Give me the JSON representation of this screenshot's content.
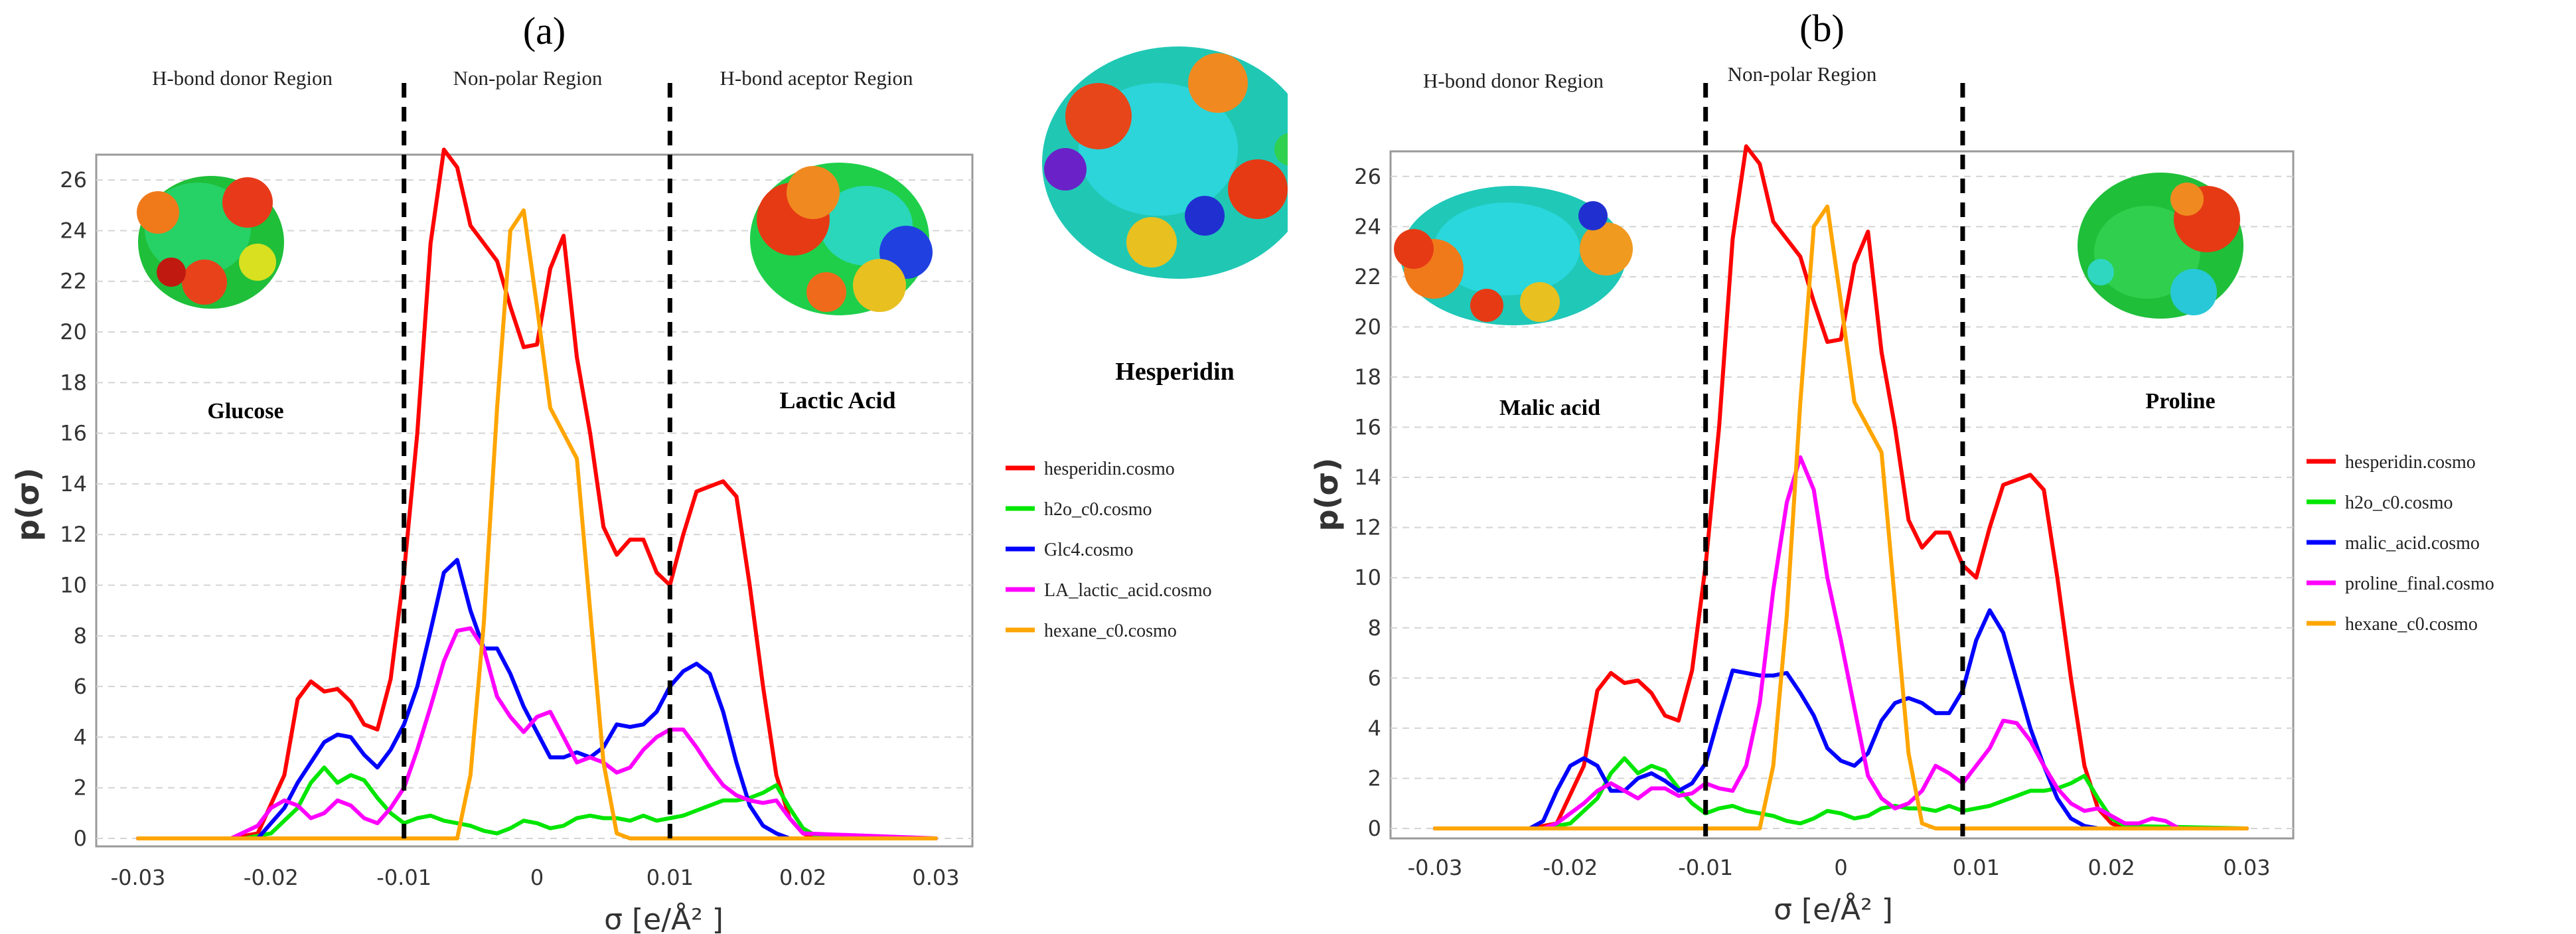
{
  "chart_data": [
    {
      "type": "line",
      "panel_label": "(a)",
      "xlabel": "σ [e/Å² ]",
      "ylabel": "p(σ)",
      "xlim": [
        -0.03,
        0.03
      ],
      "ylim": [
        0,
        27
      ],
      "x_ticks": [
        "-0.03",
        "-0.02",
        "-0.01",
        "0",
        "0.01",
        "0.02",
        "0.03"
      ],
      "y_ticks": [
        "0",
        "2",
        "4",
        "6",
        "8",
        "10",
        "12",
        "14",
        "16",
        "18",
        "20",
        "22",
        "24",
        "26"
      ],
      "grid": "horizontal dashed",
      "regions": [
        "H-bond donor Region",
        "Non-polar Region",
        "H-bond aceptor Region"
      ],
      "dividers": [
        -0.01,
        0.01
      ],
      "annotations": [
        "Glucose",
        "Lactic Acid",
        "Hesperidin"
      ],
      "legend_position": "right",
      "series": [
        {
          "name": "hesperidin.cosmo",
          "color": "#ff0000",
          "x": [
            -0.03,
            -0.023,
            -0.021,
            -0.019,
            -0.018,
            -0.017,
            -0.016,
            -0.015,
            -0.014,
            -0.013,
            -0.012,
            -0.011,
            -0.01,
            -0.009,
            -0.008,
            -0.007,
            -0.006,
            -0.005,
            -0.004,
            -0.003,
            -0.002,
            -0.001,
            0.0,
            0.001,
            0.002,
            0.003,
            0.004,
            0.005,
            0.006,
            0.007,
            0.008,
            0.009,
            0.01,
            0.011,
            0.012,
            0.013,
            0.014,
            0.015,
            0.016,
            0.017,
            0.018,
            0.019,
            0.02,
            0.021,
            0.03
          ],
          "y": [
            0,
            0,
            0.2,
            2.5,
            5.5,
            6.2,
            5.8,
            5.9,
            5.4,
            4.5,
            4.3,
            6.3,
            10.5,
            16,
            23.5,
            27.2,
            26.5,
            24.2,
            23.5,
            22.8,
            21,
            19.4,
            19.5,
            22.5,
            23.8,
            19,
            16,
            12.3,
            11.2,
            11.8,
            11.8,
            10.5,
            10,
            12,
            13.7,
            13.9,
            14.1,
            13.5,
            10,
            6,
            2.5,
            0.8,
            0.2,
            0,
            0
          ]
        },
        {
          "name": "h2o_c0.cosmo",
          "color": "#00e600",
          "x": [
            -0.03,
            -0.022,
            -0.02,
            -0.018,
            -0.017,
            -0.016,
            -0.015,
            -0.014,
            -0.013,
            -0.012,
            -0.011,
            -0.01,
            -0.009,
            -0.008,
            -0.007,
            -0.006,
            -0.005,
            -0.004,
            -0.003,
            -0.002,
            -0.001,
            0.0,
            0.001,
            0.002,
            0.003,
            0.004,
            0.005,
            0.006,
            0.007,
            0.008,
            0.009,
            0.01,
            0.011,
            0.012,
            0.013,
            0.014,
            0.015,
            0.016,
            0.017,
            0.018,
            0.019,
            0.02,
            0.021,
            0.03
          ],
          "y": [
            0,
            0,
            0.2,
            1.2,
            2.2,
            2.8,
            2.2,
            2.5,
            2.3,
            1.6,
            1,
            0.6,
            0.8,
            0.9,
            0.7,
            0.6,
            0.5,
            0.3,
            0.2,
            0.4,
            0.7,
            0.6,
            0.4,
            0.5,
            0.8,
            0.9,
            0.8,
            0.8,
            0.7,
            0.9,
            0.7,
            0.8,
            0.9,
            1.1,
            1.3,
            1.5,
            1.5,
            1.6,
            1.8,
            2.1,
            1.2,
            0.4,
            0.1,
            0
          ]
        },
        {
          "name": "Glc4.cosmo",
          "color": "#0000ff",
          "x": [
            -0.03,
            -0.021,
            -0.019,
            -0.018,
            -0.017,
            -0.016,
            -0.015,
            -0.014,
            -0.013,
            -0.012,
            -0.011,
            -0.01,
            -0.009,
            -0.008,
            -0.007,
            -0.006,
            -0.005,
            -0.004,
            -0.003,
            -0.002,
            -0.001,
            0.0,
            0.001,
            0.002,
            0.003,
            0.004,
            0.005,
            0.006,
            0.007,
            0.008,
            0.009,
            0.01,
            0.011,
            0.012,
            0.013,
            0.014,
            0.015,
            0.016,
            0.017,
            0.018,
            0.019,
            0.02,
            0.03
          ],
          "y": [
            0,
            0,
            1.2,
            2.2,
            3,
            3.8,
            4.1,
            4,
            3.3,
            2.8,
            3.5,
            4.5,
            6,
            8.2,
            10.5,
            11,
            9,
            7.5,
            7.5,
            6.5,
            5.2,
            4.2,
            3.2,
            3.2,
            3.4,
            3.2,
            3.6,
            4.5,
            4.4,
            4.5,
            5,
            6,
            6.6,
            6.9,
            6.5,
            5,
            3,
            1.3,
            0.5,
            0.2,
            0,
            0,
            0
          ]
        },
        {
          "name": "LA_lactic_acid.cosmo",
          "color": "#ff00ff",
          "x": [
            -0.03,
            -0.023,
            -0.021,
            -0.02,
            -0.019,
            -0.018,
            -0.017,
            -0.016,
            -0.015,
            -0.014,
            -0.013,
            -0.012,
            -0.011,
            -0.01,
            -0.009,
            -0.008,
            -0.007,
            -0.006,
            -0.005,
            -0.004,
            -0.003,
            -0.002,
            -0.001,
            0.0,
            0.001,
            0.002,
            0.003,
            0.004,
            0.005,
            0.006,
            0.007,
            0.008,
            0.009,
            0.01,
            0.011,
            0.012,
            0.013,
            0.014,
            0.015,
            0.016,
            0.017,
            0.018,
            0.019,
            0.02,
            0.03
          ],
          "y": [
            0,
            0,
            0.5,
            1.2,
            1.5,
            1.3,
            0.8,
            1,
            1.5,
            1.3,
            0.8,
            0.6,
            1.2,
            2,
            3.5,
            5.2,
            7,
            8.2,
            8.3,
            7.5,
            5.6,
            4.8,
            4.2,
            4.8,
            5,
            4,
            3,
            3.2,
            3,
            2.6,
            2.8,
            3.5,
            4,
            4.3,
            4.3,
            3.6,
            2.8,
            2.1,
            1.7,
            1.5,
            1.4,
            1.5,
            0.8,
            0.2,
            0
          ]
        },
        {
          "name": "hexane_c0.cosmo",
          "color": "#ffa500",
          "x": [
            -0.03,
            -0.006,
            -0.005,
            -0.004,
            -0.003,
            -0.002,
            -0.001,
            0.0,
            0.001,
            0.002,
            0.003,
            0.004,
            0.005,
            0.006,
            0.007,
            0.03
          ],
          "y": [
            0,
            0,
            2.5,
            8.5,
            17,
            24,
            24.8,
            21,
            17,
            16,
            15,
            9,
            3,
            0.2,
            0,
            0
          ]
        }
      ]
    },
    {
      "type": "line",
      "panel_label": "(b)",
      "xlabel": "σ [e/Å² ]",
      "ylabel": "p(σ)",
      "xlim": [
        -0.03,
        0.03
      ],
      "ylim": [
        0,
        27
      ],
      "x_ticks": [
        "-0.03",
        "-0.02",
        "-0.01",
        "0",
        "0.01",
        "0.02",
        "0.03"
      ],
      "y_ticks": [
        "0",
        "2",
        "4",
        "6",
        "8",
        "10",
        "12",
        "14",
        "16",
        "18",
        "20",
        "22",
        "24",
        "26"
      ],
      "grid": "horizontal dashed",
      "regions": [
        "H-bond donor Region",
        "Non-polar Region"
      ],
      "dividers": [
        -0.01,
        0.009
      ],
      "annotations": [
        "Malic acid",
        "Proline"
      ],
      "legend_position": "right",
      "series": [
        {
          "name": "hesperidin.cosmo",
          "color": "#ff0000",
          "x": [
            -0.03,
            -0.023,
            -0.021,
            -0.019,
            -0.018,
            -0.017,
            -0.016,
            -0.015,
            -0.014,
            -0.013,
            -0.012,
            -0.011,
            -0.01,
            -0.009,
            -0.008,
            -0.007,
            -0.006,
            -0.005,
            -0.004,
            -0.003,
            -0.002,
            -0.001,
            0.0,
            0.001,
            0.002,
            0.003,
            0.004,
            0.005,
            0.006,
            0.007,
            0.008,
            0.009,
            0.01,
            0.011,
            0.012,
            0.013,
            0.014,
            0.015,
            0.016,
            0.017,
            0.018,
            0.019,
            0.02,
            0.021,
            0.03
          ],
          "y": [
            0,
            0,
            0.2,
            2.5,
            5.5,
            6.2,
            5.8,
            5.9,
            5.4,
            4.5,
            4.3,
            6.3,
            10.5,
            16,
            23.5,
            27.2,
            26.5,
            24.2,
            23.5,
            22.8,
            21,
            19.4,
            19.5,
            22.5,
            23.8,
            19,
            16,
            12.3,
            11.2,
            11.8,
            11.8,
            10.5,
            10,
            12,
            13.7,
            13.9,
            14.1,
            13.5,
            10,
            6,
            2.5,
            0.8,
            0.2,
            0,
            0
          ]
        },
        {
          "name": "h2o_c0.cosmo",
          "color": "#00e600",
          "x": [
            -0.03,
            -0.022,
            -0.02,
            -0.018,
            -0.017,
            -0.016,
            -0.015,
            -0.014,
            -0.013,
            -0.012,
            -0.011,
            -0.01,
            -0.009,
            -0.008,
            -0.007,
            -0.006,
            -0.005,
            -0.004,
            -0.003,
            -0.002,
            -0.001,
            0.0,
            0.001,
            0.002,
            0.003,
            0.004,
            0.005,
            0.006,
            0.007,
            0.008,
            0.009,
            0.01,
            0.011,
            0.012,
            0.013,
            0.014,
            0.015,
            0.016,
            0.017,
            0.018,
            0.019,
            0.02,
            0.021,
            0.03
          ],
          "y": [
            0,
            0,
            0.2,
            1.2,
            2.2,
            2.8,
            2.2,
            2.5,
            2.3,
            1.6,
            1,
            0.6,
            0.8,
            0.9,
            0.7,
            0.6,
            0.5,
            0.3,
            0.2,
            0.4,
            0.7,
            0.6,
            0.4,
            0.5,
            0.8,
            0.9,
            0.8,
            0.8,
            0.7,
            0.9,
            0.7,
            0.8,
            0.9,
            1.1,
            1.3,
            1.5,
            1.5,
            1.6,
            1.8,
            2.1,
            1.2,
            0.4,
            0.1,
            0
          ]
        },
        {
          "name": "malic_acid.cosmo",
          "color": "#0000ff",
          "x": [
            -0.03,
            -0.023,
            -0.022,
            -0.021,
            -0.02,
            -0.019,
            -0.018,
            -0.017,
            -0.016,
            -0.015,
            -0.014,
            -0.013,
            -0.012,
            -0.011,
            -0.01,
            -0.009,
            -0.008,
            -0.007,
            -0.006,
            -0.005,
            -0.004,
            -0.003,
            -0.002,
            -0.001,
            0.0,
            0.001,
            0.002,
            0.003,
            0.004,
            0.005,
            0.006,
            0.007,
            0.008,
            0.009,
            0.01,
            0.011,
            0.012,
            0.013,
            0.014,
            0.015,
            0.016,
            0.017,
            0.018,
            0.019,
            0.03
          ],
          "y": [
            0,
            0,
            0.3,
            1.5,
            2.5,
            2.8,
            2.5,
            1.5,
            1.5,
            2,
            2.2,
            1.9,
            1.5,
            1.8,
            2.6,
            4.5,
            6.3,
            6.2,
            6.1,
            6.1,
            6.2,
            5.4,
            4.5,
            3.2,
            2.7,
            2.5,
            3,
            4.3,
            5,
            5.2,
            5,
            4.6,
            4.6,
            5.5,
            7.5,
            8.7,
            7.8,
            5.9,
            4,
            2.5,
            1.2,
            0.4,
            0.1,
            0,
            0
          ]
        },
        {
          "name": "proline_final.cosmo",
          "color": "#ff00ff",
          "x": [
            -0.03,
            -0.022,
            -0.021,
            -0.02,
            -0.019,
            -0.018,
            -0.017,
            -0.016,
            -0.015,
            -0.014,
            -0.013,
            -0.012,
            -0.011,
            -0.01,
            -0.009,
            -0.008,
            -0.007,
            -0.006,
            -0.005,
            -0.004,
            -0.003,
            -0.002,
            -0.001,
            0.0,
            0.001,
            0.002,
            0.003,
            0.004,
            0.005,
            0.006,
            0.007,
            0.008,
            0.009,
            0.01,
            0.011,
            0.012,
            0.013,
            0.014,
            0.015,
            0.016,
            0.017,
            0.018,
            0.019,
            0.02,
            0.021,
            0.022,
            0.023,
            0.024,
            0.025,
            0.03
          ],
          "y": [
            0,
            0,
            0.2,
            0.6,
            1,
            1.5,
            1.8,
            1.5,
            1.2,
            1.6,
            1.6,
            1.3,
            1.4,
            1.8,
            1.6,
            1.5,
            2.5,
            5,
            9.5,
            13,
            14.8,
            13.5,
            10,
            7.5,
            4.8,
            2.1,
            1.2,
            0.8,
            1,
            1.5,
            2.5,
            2.2,
            1.8,
            2.5,
            3.2,
            4.3,
            4.2,
            3.5,
            2.5,
            1.6,
            1,
            0.7,
            0.8,
            0.5,
            0.2,
            0.2,
            0.4,
            0.3,
            0,
            0
          ]
        },
        {
          "name": "hexane_c0.cosmo",
          "color": "#ffa500",
          "x": [
            -0.03,
            -0.006,
            -0.005,
            -0.004,
            -0.003,
            -0.002,
            -0.001,
            0.0,
            0.001,
            0.002,
            0.003,
            0.004,
            0.005,
            0.006,
            0.007,
            0.03
          ],
          "y": [
            0,
            0,
            2.5,
            8.5,
            17,
            24,
            24.8,
            21,
            17,
            16,
            15,
            9,
            3,
            0.2,
            0,
            0
          ]
        }
      ]
    }
  ]
}
